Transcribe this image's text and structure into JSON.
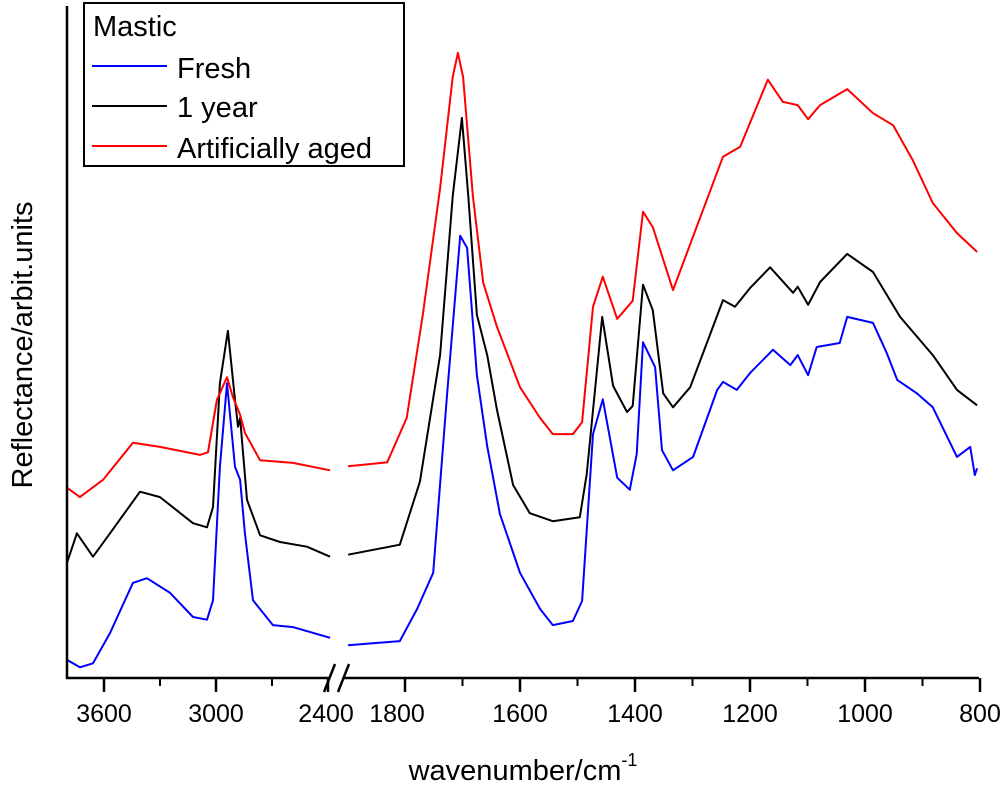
{
  "chart_data": {
    "type": "line",
    "title": "",
    "xlabel": "wavenumber/cm",
    "xlabel_superscript": "-1",
    "ylabel": "Reflectance/arbit.units",
    "x_segments": [
      {
        "range": [
          3800,
          2390
        ],
        "ticks": [
          "3600",
          "3000",
          "2400"
        ],
        "minor_ticks": [
          3300,
          2700
        ]
      },
      {
        "range": [
          1900,
          800
        ],
        "ticks": [
          "1800",
          "1600",
          "1400",
          "1200",
          "1000",
          "800"
        ],
        "minor_ticks": [
          1700,
          1500,
          1300,
          1100,
          900
        ]
      }
    ],
    "axis_break": true,
    "ylim": [
      0,
      100
    ],
    "y_ticks_shown": false,
    "grid": false,
    "legend": {
      "title": "Mastic",
      "placement": "top-left",
      "entries": [
        "Fresh",
        "1 year",
        "Artificially aged"
      ]
    },
    "series": [
      {
        "name": "Fresh",
        "color": "#0000ff",
        "points": [
          [
            3798,
            2.7
          ],
          [
            3729,
            1.6
          ],
          [
            3659,
            2.2
          ],
          [
            3568,
            6.7
          ],
          [
            3445,
            14.2
          ],
          [
            3370,
            14.9
          ],
          [
            3246,
            12.7
          ],
          [
            3123,
            9.1
          ],
          [
            3048,
            8.7
          ],
          [
            3016,
            11.6
          ],
          [
            2979,
            31.5
          ],
          [
            2941,
            44.0
          ],
          [
            2898,
            31.5
          ],
          [
            2871,
            29.6
          ],
          [
            2845,
            21.6
          ],
          [
            2802,
            11.6
          ],
          [
            2695,
            7.9
          ],
          [
            2588,
            7.6
          ],
          [
            2389,
            6.0
          ],
          null,
          [
            1899,
            4.9
          ],
          [
            1809,
            5.5
          ],
          [
            1779,
            10.3
          ],
          [
            1751,
            15.7
          ],
          [
            1727,
            42.2
          ],
          [
            1704,
            66.0
          ],
          [
            1692,
            64.2
          ],
          [
            1675,
            45.2
          ],
          [
            1657,
            34.6
          ],
          [
            1635,
            24.5
          ],
          [
            1600,
            15.7
          ],
          [
            1565,
            10.3
          ],
          [
            1543,
            7.9
          ],
          [
            1508,
            8.5
          ],
          [
            1492,
            11.5
          ],
          [
            1473,
            36.4
          ],
          [
            1456,
            41.6
          ],
          [
            1431,
            29.9
          ],
          [
            1409,
            28.1
          ],
          [
            1397,
            33.4
          ],
          [
            1386,
            50.1
          ],
          [
            1365,
            46.4
          ],
          [
            1353,
            34.0
          ],
          [
            1334,
            31.0
          ],
          [
            1299,
            33.0
          ],
          [
            1257,
            43.0
          ],
          [
            1247,
            44.2
          ],
          [
            1223,
            43.0
          ],
          [
            1200,
            45.5
          ],
          [
            1160,
            49.0
          ],
          [
            1130,
            46.7
          ],
          [
            1117,
            48.2
          ],
          [
            1099,
            45.2
          ],
          [
            1084,
            49.4
          ],
          [
            1044,
            50.0
          ],
          [
            1031,
            53.9
          ],
          [
            986,
            53.0
          ],
          [
            962,
            48.5
          ],
          [
            944,
            44.5
          ],
          [
            910,
            42.5
          ],
          [
            882,
            40.4
          ],
          [
            840,
            33.0
          ],
          [
            817,
            34.5
          ],
          [
            809,
            30.3
          ],
          [
            805,
            31.3
          ]
        ]
      },
      {
        "name": "1 year",
        "color": "#000000",
        "points": [
          [
            3798,
            17.2
          ],
          [
            3745,
            21.6
          ],
          [
            3659,
            18.1
          ],
          [
            3568,
            21.6
          ],
          [
            3407,
            27.8
          ],
          [
            3300,
            27.0
          ],
          [
            3123,
            23.1
          ],
          [
            3048,
            22.5
          ],
          [
            3016,
            25.5
          ],
          [
            2979,
            44.0
          ],
          [
            2936,
            51.8
          ],
          [
            2898,
            41.5
          ],
          [
            2882,
            37.5
          ],
          [
            2871,
            38.8
          ],
          [
            2834,
            26.6
          ],
          [
            2764,
            21.3
          ],
          [
            2657,
            20.3
          ],
          [
            2513,
            19.6
          ],
          [
            2389,
            18.1
          ],
          null,
          [
            1899,
            18.4
          ],
          [
            1809,
            19.9
          ],
          [
            1774,
            29.3
          ],
          [
            1739,
            48.2
          ],
          [
            1717,
            71.9
          ],
          [
            1701,
            83.6
          ],
          [
            1690,
            71.9
          ],
          [
            1675,
            54.2
          ],
          [
            1657,
            48.2
          ],
          [
            1640,
            40.0
          ],
          [
            1612,
            28.8
          ],
          [
            1583,
            24.6
          ],
          [
            1543,
            23.4
          ],
          [
            1496,
            24.0
          ],
          [
            1484,
            30.4
          ],
          [
            1457,
            53.9
          ],
          [
            1438,
            43.6
          ],
          [
            1414,
            39.7
          ],
          [
            1404,
            40.6
          ],
          [
            1386,
            58.7
          ],
          [
            1369,
            54.9
          ],
          [
            1351,
            42.5
          ],
          [
            1334,
            40.4
          ],
          [
            1304,
            43.4
          ],
          [
            1247,
            56.4
          ],
          [
            1226,
            55.4
          ],
          [
            1200,
            58.2
          ],
          [
            1165,
            61.3
          ],
          [
            1125,
            57.5
          ],
          [
            1117,
            58.4
          ],
          [
            1099,
            55.7
          ],
          [
            1078,
            59.1
          ],
          [
            1031,
            63.3
          ],
          [
            986,
            60.6
          ],
          [
            939,
            53.9
          ],
          [
            882,
            48.2
          ],
          [
            840,
            43.0
          ],
          [
            805,
            40.7
          ]
        ]
      },
      {
        "name": "Artificially aged",
        "color": "#ff0000",
        "points": [
          [
            3798,
            28.4
          ],
          [
            3729,
            27.0
          ],
          [
            3605,
            29.6
          ],
          [
            3445,
            35.1
          ],
          [
            3300,
            34.5
          ],
          [
            3086,
            33.3
          ],
          [
            3043,
            33.7
          ],
          [
            2995,
            41.5
          ],
          [
            2941,
            44.9
          ],
          [
            2909,
            41.9
          ],
          [
            2871,
            39.3
          ],
          [
            2845,
            36.6
          ],
          [
            2764,
            32.5
          ],
          [
            2588,
            32.1
          ],
          [
            2389,
            31.0
          ],
          null,
          [
            1899,
            31.6
          ],
          [
            1831,
            32.2
          ],
          [
            1797,
            38.8
          ],
          [
            1769,
            54.2
          ],
          [
            1739,
            73.1
          ],
          [
            1717,
            89.7
          ],
          [
            1708,
            93.3
          ],
          [
            1699,
            89.7
          ],
          [
            1682,
            71.9
          ],
          [
            1664,
            59.0
          ],
          [
            1640,
            52.4
          ],
          [
            1600,
            43.4
          ],
          [
            1565,
            38.8
          ],
          [
            1543,
            36.4
          ],
          [
            1508,
            36.4
          ],
          [
            1492,
            38.2
          ],
          [
            1473,
            55.4
          ],
          [
            1456,
            59.9
          ],
          [
            1431,
            53.6
          ],
          [
            1404,
            56.3
          ],
          [
            1386,
            69.6
          ],
          [
            1369,
            67.3
          ],
          [
            1334,
            57.9
          ],
          [
            1247,
            77.8
          ],
          [
            1217,
            79.3
          ],
          [
            1169,
            89.3
          ],
          [
            1143,
            86.0
          ],
          [
            1117,
            85.5
          ],
          [
            1099,
            83.4
          ],
          [
            1078,
            85.5
          ],
          [
            1031,
            87.9
          ],
          [
            986,
            84.3
          ],
          [
            951,
            82.5
          ],
          [
            917,
            77.3
          ],
          [
            882,
            70.9
          ],
          [
            840,
            66.4
          ],
          [
            805,
            63.6
          ]
        ]
      }
    ]
  }
}
